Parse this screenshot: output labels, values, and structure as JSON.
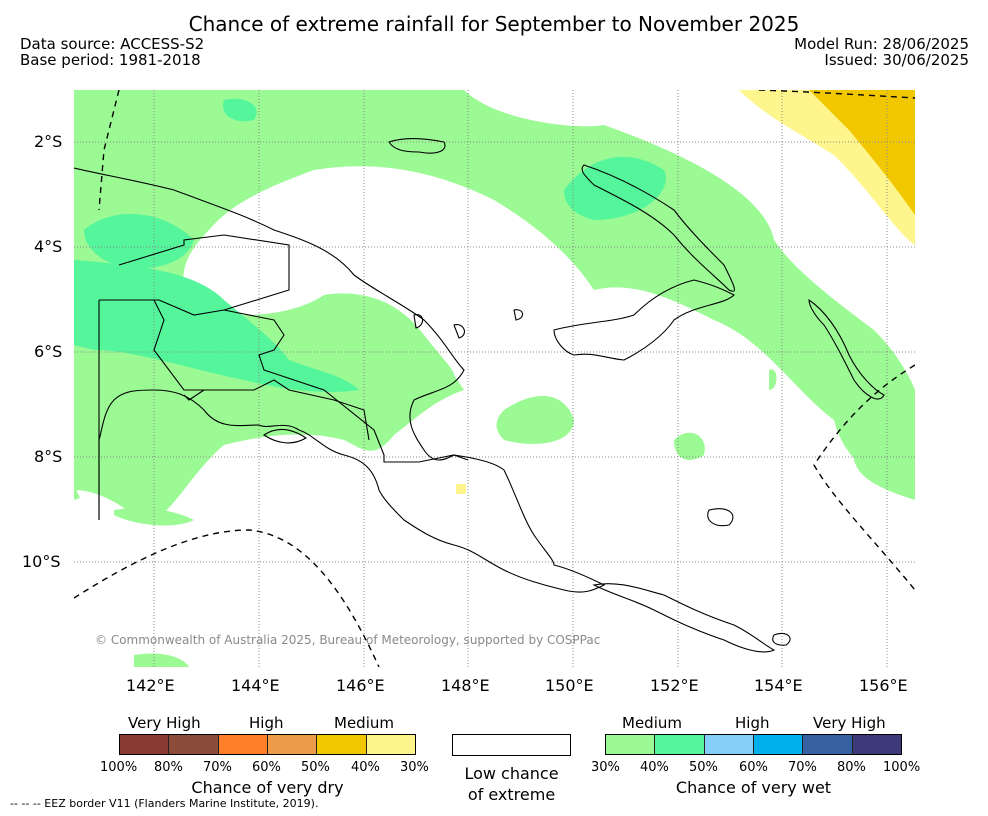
{
  "title": "Chance of extreme rainfall for September to November 2025",
  "data_source": "Data source: ACCESS-S2",
  "base_period": "Base period: 1981-2018",
  "model_run": "Model Run: 28/06/2025",
  "issued": "Issued: 30/06/2025",
  "map": {
    "lon_labels": [
      "142°E",
      "144°E",
      "146°E",
      "148°E",
      "150°E",
      "152°E",
      "154°E",
      "156°E"
    ],
    "lat_labels": [
      "2°S",
      "4°S",
      "6°S",
      "8°S",
      "10°S"
    ],
    "copyright": "© Commonwealth of Australia 2025, Bureau of Meteorology, supported by COSPPac",
    "grid": true,
    "colors": {
      "wet_medium": "#9bfa94",
      "wet_high": "#55f59c",
      "dry_medium": "#f1c800",
      "dry_low": "#fef68c",
      "coast": "#000000"
    }
  },
  "legend": {
    "dry": {
      "labels": [
        "Very High",
        "High",
        "Medium"
      ],
      "ticks": [
        "100%",
        "80%",
        "70%",
        "60%",
        "50%",
        "40%",
        "30%"
      ],
      "colors": [
        "#8b3a33",
        "#8b4c3a",
        "#fe7f27",
        "#ee9c4a",
        "#f1c800",
        "#fef68c"
      ],
      "caption": "Chance of very dry"
    },
    "low": {
      "caption_line1": "Low chance",
      "caption_line2": "of extreme"
    },
    "wet": {
      "labels": [
        "Medium",
        "High",
        "Very High"
      ],
      "ticks": [
        "30%",
        "40%",
        "50%",
        "60%",
        "70%",
        "80%",
        "100%"
      ],
      "colors": [
        "#9bfa94",
        "#55f59c",
        "#86cefa",
        "#00b0ed",
        "#3762a2",
        "#3c3a78"
      ],
      "caption": "Chance of very wet"
    }
  },
  "eez_note": "--  --  -- EEZ border V11 (Flanders Marine Institute, 2019)."
}
